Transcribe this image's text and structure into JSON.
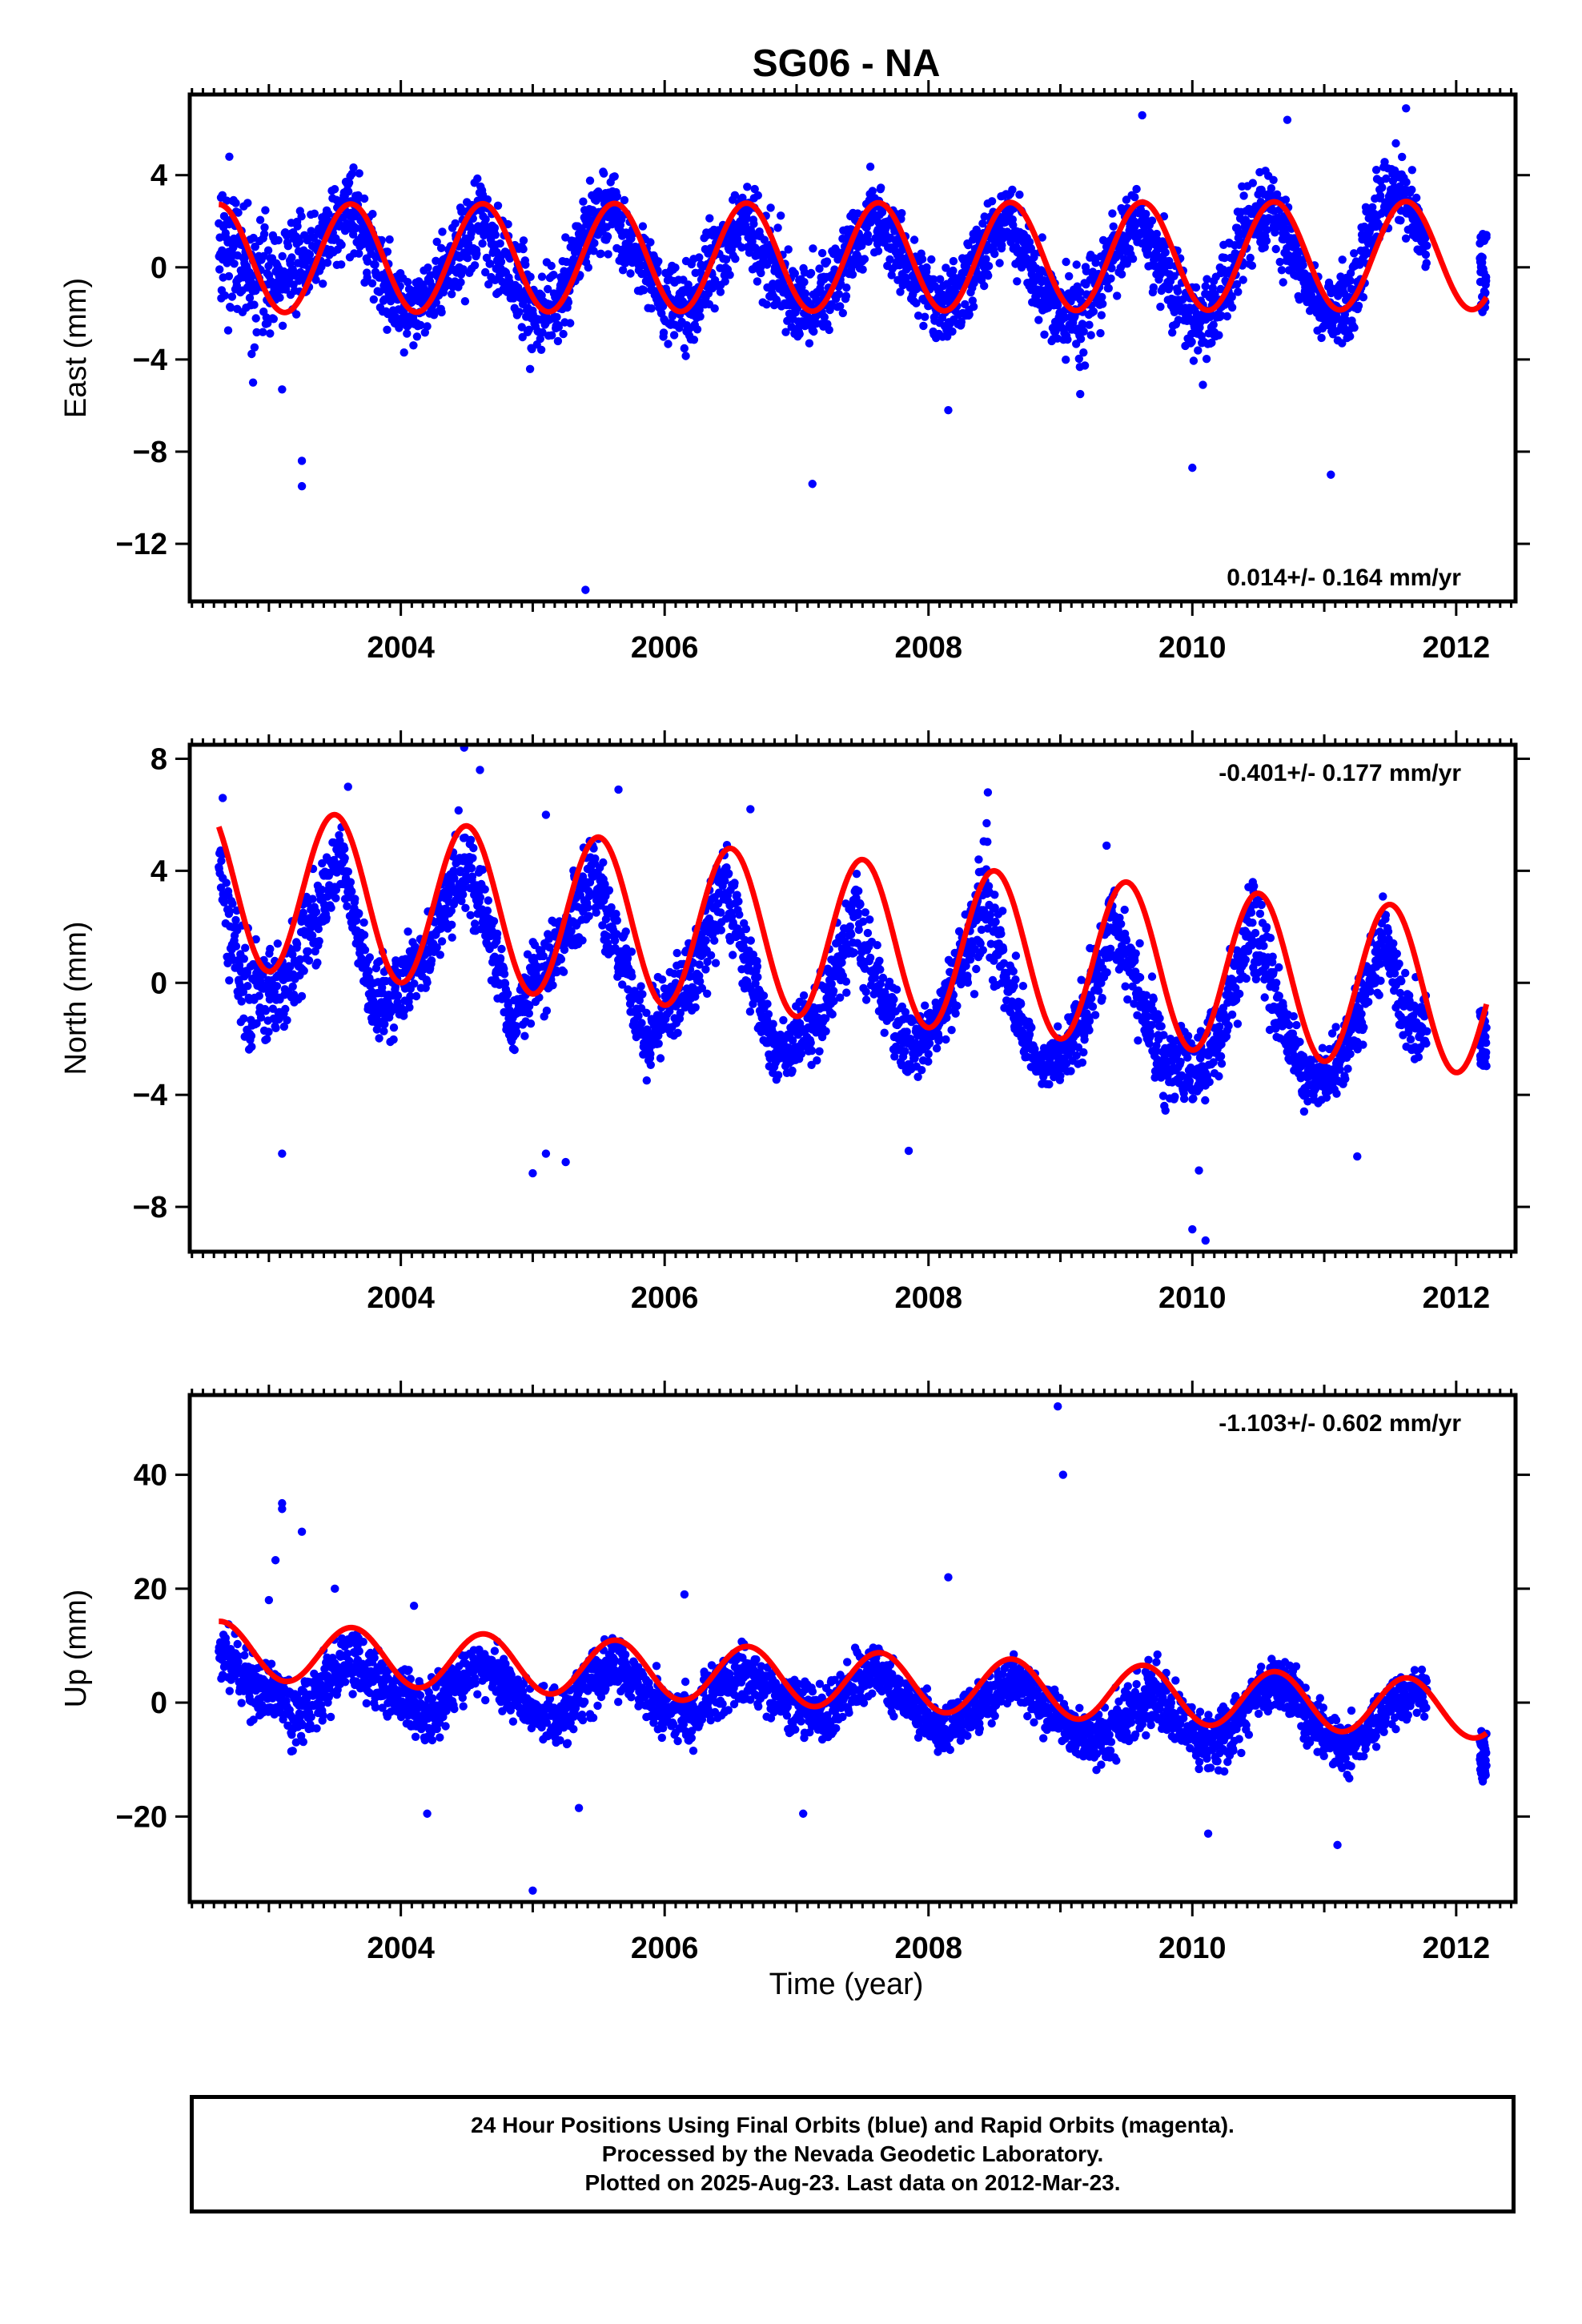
{
  "title": "SG06 - NA",
  "colors": {
    "points": "#0000ff",
    "fit": "#ff0000",
    "frame": "#000000"
  },
  "chart_data": [
    {
      "type": "scatter",
      "component": "East",
      "ylabel": "East (mm)",
      "xlabel": "",
      "xlim": [
        2002.4,
        2012.45
      ],
      "ylim": [
        -14.5,
        7.5
      ],
      "yticks": [
        -12,
        -8,
        -4,
        0,
        4
      ],
      "ytick_labels": [
        "−12",
        "−8",
        "−4",
        "0",
        "4"
      ],
      "xticks": [
        2004,
        2006,
        2008,
        2010,
        2012
      ],
      "xtick_labels": [
        "2004",
        "2006",
        "2008",
        "2010",
        "2012"
      ],
      "rate_label": "0.014+/- 0.164 mm/yr",
      "rate_position": "bottom-right",
      "series": [
        {
          "label": "daily positions",
          "style": "points",
          "band": [
            [
              2002.62,
              -2,
              5
            ],
            [
              2002.8,
              -4,
              4
            ],
            [
              2003.0,
              -4,
              3
            ],
            [
              2003.2,
              -3,
              3
            ],
            [
              2003.4,
              -2,
              4
            ],
            [
              2003.6,
              0,
              5.5
            ],
            [
              2003.8,
              -2,
              3
            ],
            [
              2004.0,
              -4,
              1
            ],
            [
              2004.2,
              -4,
              1
            ],
            [
              2004.4,
              -2,
              3
            ],
            [
              2004.6,
              -1,
              5
            ],
            [
              2004.8,
              -3,
              3
            ],
            [
              2005.0,
              -5,
              1
            ],
            [
              2005.2,
              -4,
              1
            ],
            [
              2005.4,
              -1,
              4
            ],
            [
              2005.6,
              0,
              5
            ],
            [
              2005.8,
              -2,
              3
            ],
            [
              2006.0,
              -4,
              1
            ],
            [
              2006.2,
              -4,
              1
            ],
            [
              2006.4,
              -2,
              3
            ],
            [
              2006.6,
              0,
              4.5
            ],
            [
              2006.8,
              -3,
              3
            ],
            [
              2007.0,
              -4,
              1
            ],
            [
              2007.2,
              -4,
              1
            ],
            [
              2007.4,
              -2,
              3
            ],
            [
              2007.6,
              0,
              5
            ],
            [
              2007.85,
              -2,
              2
            ],
            [
              2008.05,
              -4,
              1
            ],
            [
              2008.2,
              -4,
              1
            ],
            [
              2008.4,
              -2,
              3
            ],
            [
              2008.6,
              0,
              4.5
            ],
            [
              2008.8,
              -3,
              2
            ],
            [
              2009.0,
              -5,
              1
            ],
            [
              2009.2,
              -5,
              1
            ],
            [
              2009.4,
              -2,
              3
            ],
            [
              2009.6,
              0,
              4
            ],
            [
              2009.8,
              -3,
              2
            ],
            [
              2010.0,
              -5,
              0
            ],
            [
              2010.2,
              -4,
              1
            ],
            [
              2010.4,
              -1,
              4
            ],
            [
              2010.6,
              0,
              5
            ],
            [
              2010.8,
              -2,
              2
            ],
            [
              2011.0,
              -4,
              0
            ],
            [
              2011.2,
              -4,
              1
            ],
            [
              2011.4,
              0,
              5
            ],
            [
              2011.6,
              1,
              6
            ],
            [
              2011.75,
              -1,
              3
            ],
            [
              2012.2,
              -2,
              1.5
            ]
          ],
          "outliers": [
            [
              2003.25,
              -9.5
            ],
            [
              2003.25,
              -8.4
            ],
            [
              2002.88,
              -5.0
            ],
            [
              2003.1,
              -5.3
            ],
            [
              2005.4,
              -14.0
            ],
            [
              2007.12,
              -9.4
            ],
            [
              2009.62,
              6.6
            ],
            [
              2010.0,
              -8.7
            ],
            [
              2010.08,
              -5.1
            ],
            [
              2011.05,
              -9.0
            ],
            [
              2011.62,
              6.9
            ],
            [
              2008.15,
              -6.2
            ],
            [
              2010.72,
              6.4
            ],
            [
              2009.15,
              -5.5
            ],
            [
              2002.7,
              4.8
            ]
          ]
        },
        {
          "label": "seasonal fit",
          "style": "line",
          "fit": {
            "offset": 0.45,
            "amplitude": 2.35,
            "peak": 0.62,
            "trend": 0.014,
            "gaps": [
              [
                2008.05,
                2008.2
              ],
              [
                2009.5,
                2009.75
              ],
              [
                2011.85,
                2012.18
              ]
            ]
          }
        }
      ]
    },
    {
      "type": "scatter",
      "component": "North",
      "ylabel": "North (mm)",
      "xlabel": "",
      "xlim": [
        2002.4,
        2012.45
      ],
      "ylim": [
        -9.6,
        8.5
      ],
      "yticks": [
        -8,
        -4,
        0,
        4,
        8
      ],
      "ytick_labels": [
        "−8",
        "−4",
        "0",
        "4",
        "8"
      ],
      "xticks": [
        2004,
        2006,
        2008,
        2010,
        2012
      ],
      "xtick_labels": [
        "2004",
        "2006",
        "2008",
        "2010",
        "2012"
      ],
      "rate_label": "-0.401+/- 0.177 mm/yr",
      "rate_position": "top-right",
      "series": [
        {
          "label": "daily positions",
          "style": "points",
          "band": [
            [
              2002.62,
              2,
              6.5
            ],
            [
              2002.8,
              -3,
              3
            ],
            [
              2003.0,
              -3,
              2
            ],
            [
              2003.2,
              -2,
              3
            ],
            [
              2003.4,
              1,
              5
            ],
            [
              2003.55,
              3,
              6
            ],
            [
              2003.8,
              -3,
              1
            ],
            [
              2004.0,
              -2,
              2
            ],
            [
              2004.2,
              -1,
              3
            ],
            [
              2004.45,
              2,
              7
            ],
            [
              2004.6,
              1,
              5
            ],
            [
              2004.85,
              -3,
              0
            ],
            [
              2005.0,
              -2,
              2
            ],
            [
              2005.2,
              -1,
              3
            ],
            [
              2005.45,
              2,
              6
            ],
            [
              2005.6,
              0,
              4
            ],
            [
              2005.85,
              -4,
              0
            ],
            [
              2006.0,
              -3,
              1
            ],
            [
              2006.2,
              -2,
              2
            ],
            [
              2006.45,
              1,
              6
            ],
            [
              2006.6,
              -1,
              3
            ],
            [
              2006.85,
              -4,
              -1
            ],
            [
              2007.0,
              -4,
              0
            ],
            [
              2007.2,
              -3,
              1
            ],
            [
              2007.45,
              0,
              5
            ],
            [
              2007.6,
              -2,
              2
            ],
            [
              2007.85,
              -4,
              -1
            ],
            [
              2008.05,
              -3,
              0
            ],
            [
              2008.2,
              -2,
              2
            ],
            [
              2008.45,
              0,
              6
            ],
            [
              2008.6,
              -2,
              2
            ],
            [
              2008.85,
              -4,
              -2
            ],
            [
              2009.0,
              -4,
              -1
            ],
            [
              2009.2,
              -3,
              1
            ],
            [
              2009.4,
              0,
              4.5
            ],
            [
              2009.8,
              -5,
              -1
            ],
            [
              2010.0,
              -5,
              -1
            ],
            [
              2010.2,
              -4,
              0
            ],
            [
              2010.45,
              0,
              4.5
            ],
            [
              2010.6,
              -2,
              2
            ],
            [
              2010.85,
              -5,
              -2
            ],
            [
              2011.0,
              -5,
              -2
            ],
            [
              2011.2,
              -4,
              0
            ],
            [
              2011.45,
              0,
              3.5
            ],
            [
              2011.6,
              -3,
              1
            ],
            [
              2012.2,
              -3,
              -1
            ]
          ],
          "outliers": [
            [
              2003.1,
              -6.1
            ],
            [
              2004.48,
              8.4
            ],
            [
              2004.6,
              7.6
            ],
            [
              2005.0,
              -6.8
            ],
            [
              2005.1,
              -6.1
            ],
            [
              2005.25,
              -6.4
            ],
            [
              2005.1,
              6.0
            ],
            [
              2006.65,
              6.2
            ],
            [
              2008.45,
              6.8
            ],
            [
              2010.05,
              -6.7
            ],
            [
              2010.1,
              -9.2
            ],
            [
              2010.0,
              -8.8
            ],
            [
              2002.65,
              6.6
            ],
            [
              2003.6,
              7.0
            ],
            [
              2005.65,
              6.9
            ],
            [
              2007.85,
              -6.0
            ],
            [
              2009.35,
              4.9
            ],
            [
              2011.25,
              -6.2
            ]
          ]
        },
        {
          "label": "seasonal fit",
          "style": "line",
          "fit": {
            "offset": 1.5,
            "amplitude": 2.9,
            "peak": 0.5,
            "trend": -0.401,
            "gaps": [
              [
                2008.0,
                2008.2
              ],
              [
                2009.5,
                2009.75
              ],
              [
                2011.8,
                2012.15
              ]
            ]
          }
        }
      ]
    },
    {
      "type": "scatter",
      "component": "Up",
      "ylabel": "Up (mm)",
      "xlabel": "Time (year)",
      "xlim": [
        2002.4,
        2012.45
      ],
      "ylim": [
        -35,
        54
      ],
      "yticks": [
        -20,
        0,
        20,
        40
      ],
      "ytick_labels": [
        "−20",
        "0",
        "20",
        "40"
      ],
      "xticks": [
        2004,
        2006,
        2008,
        2010,
        2012
      ],
      "xtick_labels": [
        "2004",
        "2006",
        "2008",
        "2010",
        "2012"
      ],
      "rate_label": "-1.103+/- 0.602 mm/yr",
      "rate_position": "top-right",
      "series": [
        {
          "label": "daily positions",
          "style": "points",
          "band": [
            [
              2002.62,
              2,
              15
            ],
            [
              2002.8,
              -3,
              12
            ],
            [
              2003.0,
              -6,
              10
            ],
            [
              2003.2,
              -10,
              6
            ],
            [
              2003.4,
              -5,
              10
            ],
            [
              2003.6,
              0,
              15
            ],
            [
              2003.8,
              -3,
              12
            ],
            [
              2004.0,
              -6,
              8
            ],
            [
              2004.2,
              -10,
              5
            ],
            [
              2004.4,
              -5,
              10
            ],
            [
              2004.6,
              0,
              13
            ],
            [
              2004.8,
              -3,
              10
            ],
            [
              2005.0,
              -8,
              6
            ],
            [
              2005.2,
              -10,
              4
            ],
            [
              2005.4,
              -5,
              10
            ],
            [
              2005.6,
              0,
              13
            ],
            [
              2005.8,
              -3,
              10
            ],
            [
              2006.0,
              -8,
              6
            ],
            [
              2006.2,
              -10,
              4
            ],
            [
              2006.4,
              -5,
              10
            ],
            [
              2006.6,
              -2,
              13
            ],
            [
              2006.8,
              -5,
              9
            ],
            [
              2007.0,
              -8,
              6
            ],
            [
              2007.2,
              -10,
              4
            ],
            [
              2007.4,
              -5,
              10
            ],
            [
              2007.6,
              -2,
              13
            ],
            [
              2007.8,
              -5,
              8
            ],
            [
              2008.1,
              -12,
              2
            ],
            [
              2008.3,
              -8,
              4
            ],
            [
              2008.5,
              -5,
              8
            ],
            [
              2008.7,
              -3,
              10
            ],
            [
              2008.9,
              -8,
              5
            ],
            [
              2009.1,
              -12,
              2
            ],
            [
              2009.3,
              -14,
              0
            ],
            [
              2009.7,
              -6,
              10
            ],
            [
              2009.9,
              -10,
              4
            ],
            [
              2010.1,
              -15,
              0
            ],
            [
              2010.3,
              -12,
              2
            ],
            [
              2010.5,
              -5,
              8
            ],
            [
              2010.7,
              -3,
              10
            ],
            [
              2010.9,
              -10,
              4
            ],
            [
              2011.1,
              -15,
              -2
            ],
            [
              2011.3,
              -12,
              0
            ],
            [
              2011.5,
              -6,
              6
            ],
            [
              2011.7,
              -4,
              8
            ],
            [
              2012.2,
              -14,
              -5
            ]
          ],
          "outliers": [
            [
              2003.1,
              35
            ],
            [
              2003.1,
              34
            ],
            [
              2003.25,
              30
            ],
            [
              2003.05,
              25
            ],
            [
              2003.0,
              18
            ],
            [
              2005.0,
              -33
            ],
            [
              2008.98,
              52
            ],
            [
              2009.02,
              40
            ],
            [
              2008.15,
              22
            ],
            [
              2004.2,
              -19.5
            ],
            [
              2005.35,
              -18.5
            ],
            [
              2007.05,
              -19.5
            ],
            [
              2011.1,
              -25
            ],
            [
              2003.5,
              20
            ],
            [
              2006.15,
              19
            ],
            [
              2010.12,
              -23
            ],
            [
              2004.1,
              17
            ]
          ]
        },
        {
          "label": "seasonal fit",
          "style": "line",
          "fit": {
            "offset": 3.9,
            "amplitude": 5.0,
            "peak": 0.63,
            "trend": -1.103,
            "gaps": [
              [
                2008.0,
                2008.35
              ],
              [
                2009.1,
                2009.55
              ],
              [
                2011.8,
                2012.2
              ]
            ]
          }
        }
      ]
    }
  ],
  "footer": {
    "line1": "24 Hour Positions Using Final Orbits (blue) and Rapid Orbits (magenta).",
    "line2": "Processed by the Nevada Geodetic Laboratory.",
    "line3": "Plotted on 2025-Aug-23. Last data on 2012-Mar-23."
  }
}
